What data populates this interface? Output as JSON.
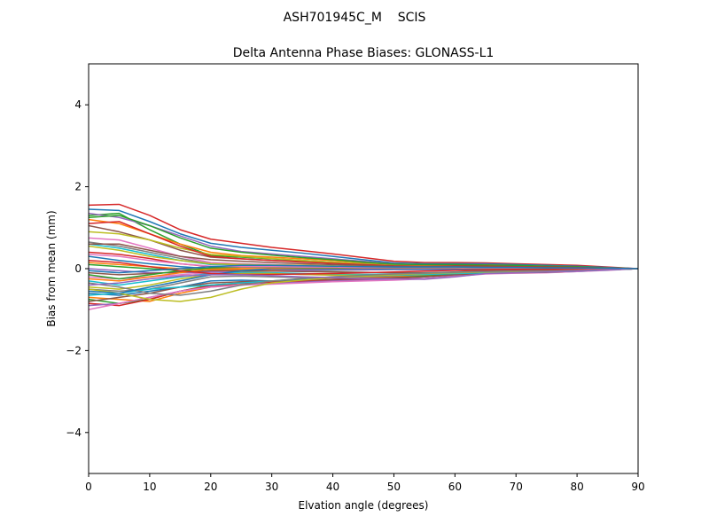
{
  "chart_data": {
    "type": "line",
    "suptitle": "ASH701945C_M    SCIS",
    "title": "Delta Antenna Phase Biases: GLONASS-L1",
    "xlabel": "Elvation angle (degrees)",
    "ylabel": "Bias from mean (mm)",
    "xlim": [
      0,
      90
    ],
    "ylim": [
      -5,
      5
    ],
    "xticks": [
      0,
      10,
      20,
      30,
      40,
      50,
      60,
      70,
      80,
      90
    ],
    "yticks": [
      -4,
      -2,
      0,
      2,
      4
    ],
    "xtick_labels": [
      "0",
      "10",
      "20",
      "30",
      "40",
      "50",
      "60",
      "70",
      "80",
      "90"
    ],
    "ytick_labels": [
      "−4",
      "−2",
      "0",
      "2",
      "4"
    ],
    "grid": false,
    "legend": "none",
    "x": [
      0,
      5,
      10,
      15,
      20,
      25,
      30,
      35,
      40,
      45,
      50,
      55,
      60,
      65,
      70,
      75,
      80,
      85,
      90
    ],
    "series": [
      {
        "color": "#d62728",
        "values": [
          1.55,
          1.57,
          1.3,
          0.95,
          0.72,
          0.62,
          0.52,
          0.44,
          0.36,
          0.27,
          0.18,
          0.15,
          0.15,
          0.14,
          0.12,
          0.1,
          0.08,
          0.04,
          0.0
        ]
      },
      {
        "color": "#1f77b4",
        "values": [
          1.45,
          1.42,
          1.15,
          0.85,
          0.62,
          0.52,
          0.45,
          0.38,
          0.3,
          0.22,
          0.14,
          0.12,
          0.12,
          0.12,
          0.1,
          0.08,
          0.06,
          0.03,
          0.0
        ]
      },
      {
        "color": "#2ca02c",
        "values": [
          1.3,
          1.35,
          0.95,
          0.6,
          0.32,
          0.28,
          0.24,
          0.2,
          0.16,
          0.12,
          0.08,
          0.08,
          0.08,
          0.08,
          0.06,
          0.05,
          0.04,
          0.02,
          0.0
        ]
      },
      {
        "color": "#9467bd",
        "values": [
          1.35,
          1.25,
          1.05,
          0.8,
          0.55,
          0.42,
          0.36,
          0.3,
          0.24,
          0.18,
          0.12,
          0.1,
          0.1,
          0.1,
          0.08,
          0.06,
          0.05,
          0.02,
          0.0
        ]
      },
      {
        "color": "#ff7f0e",
        "values": [
          1.2,
          1.1,
          0.85,
          0.6,
          0.4,
          0.32,
          0.28,
          0.24,
          0.2,
          0.15,
          0.1,
          0.09,
          0.09,
          0.09,
          0.07,
          0.06,
          0.04,
          0.02,
          0.0
        ]
      },
      {
        "color": "#8c564b",
        "values": [
          1.05,
          0.9,
          0.7,
          0.45,
          0.28,
          0.24,
          0.2,
          0.18,
          0.15,
          0.12,
          0.08,
          0.07,
          0.07,
          0.07,
          0.06,
          0.05,
          0.03,
          0.02,
          0.0
        ]
      },
      {
        "color": "#bcbd22",
        "values": [
          0.9,
          0.85,
          0.7,
          0.5,
          0.35,
          0.3,
          0.25,
          0.2,
          0.16,
          0.12,
          0.08,
          0.07,
          0.06,
          0.06,
          0.05,
          0.04,
          0.03,
          0.01,
          0.0
        ]
      },
      {
        "color": "#e377c2",
        "values": [
          0.75,
          0.7,
          0.5,
          0.3,
          0.15,
          0.12,
          0.1,
          0.08,
          0.06,
          0.05,
          0.04,
          0.04,
          0.04,
          0.04,
          0.03,
          0.03,
          0.02,
          0.01,
          0.0
        ]
      },
      {
        "color": "#17becf",
        "values": [
          0.6,
          0.5,
          0.35,
          0.2,
          0.1,
          0.1,
          0.08,
          0.06,
          0.05,
          0.04,
          0.03,
          0.03,
          0.03,
          0.03,
          0.02,
          0.02,
          0.01,
          0.01,
          0.0
        ]
      },
      {
        "color": "#7f7f7f",
        "values": [
          0.65,
          0.55,
          0.4,
          0.25,
          0.12,
          0.1,
          0.08,
          0.06,
          0.05,
          0.04,
          0.03,
          0.03,
          0.03,
          0.02,
          0.02,
          0.02,
          0.01,
          0.0,
          0.0
        ]
      },
      {
        "color": "#d62728",
        "values": [
          0.4,
          0.35,
          0.25,
          0.12,
          0.05,
          0.04,
          0.03,
          0.02,
          0.02,
          0.02,
          0.01,
          0.01,
          0.01,
          0.01,
          0.01,
          0.0,
          0.0,
          0.0,
          0.0
        ]
      },
      {
        "color": "#1f77b4",
        "values": [
          0.3,
          0.2,
          0.12,
          0.05,
          0.0,
          -0.02,
          -0.03,
          -0.03,
          -0.03,
          -0.02,
          -0.02,
          -0.02,
          -0.02,
          -0.01,
          -0.01,
          -0.01,
          -0.01,
          0.0,
          0.0
        ]
      },
      {
        "color": "#2ca02c",
        "values": [
          0.1,
          0.05,
          0.0,
          -0.05,
          -0.08,
          -0.07,
          -0.06,
          -0.05,
          -0.04,
          -0.03,
          -0.02,
          -0.02,
          -0.02,
          -0.02,
          -0.02,
          -0.01,
          -0.01,
          0.0,
          0.0
        ]
      },
      {
        "color": "#ff7f0e",
        "values": [
          0.15,
          0.1,
          0.05,
          0.0,
          -0.02,
          -0.02,
          -0.02,
          -0.02,
          -0.02,
          -0.02,
          -0.01,
          -0.01,
          -0.01,
          -0.01,
          -0.01,
          -0.01,
          0.0,
          0.0,
          0.0
        ]
      },
      {
        "color": "#9467bd",
        "values": [
          0.0,
          -0.05,
          -0.1,
          -0.1,
          -0.08,
          -0.06,
          -0.05,
          -0.04,
          -0.03,
          -0.03,
          -0.02,
          -0.02,
          -0.02,
          -0.02,
          -0.01,
          -0.01,
          -0.01,
          0.0,
          0.0
        ]
      },
      {
        "color": "#8c564b",
        "values": [
          -0.1,
          -0.15,
          -0.12,
          -0.08,
          -0.05,
          -0.05,
          -0.06,
          -0.07,
          -0.08,
          -0.09,
          -0.1,
          -0.1,
          -0.08,
          -0.05,
          -0.05,
          -0.05,
          -0.04,
          -0.02,
          0.0
        ]
      },
      {
        "color": "#e377c2",
        "values": [
          -0.2,
          -0.25,
          -0.2,
          -0.15,
          -0.1,
          -0.1,
          -0.12,
          -0.14,
          -0.16,
          -0.17,
          -0.18,
          -0.16,
          -0.12,
          -0.08,
          -0.07,
          -0.06,
          -0.05,
          -0.03,
          0.0
        ]
      },
      {
        "color": "#17becf",
        "values": [
          -0.3,
          -0.4,
          -0.3,
          -0.2,
          -0.12,
          -0.1,
          -0.1,
          -0.12,
          -0.14,
          -0.14,
          -0.13,
          -0.11,
          -0.09,
          -0.07,
          -0.06,
          -0.05,
          -0.04,
          -0.02,
          0.0
        ]
      },
      {
        "color": "#bcbd22",
        "values": [
          -0.45,
          -0.5,
          -0.4,
          -0.25,
          -0.15,
          -0.12,
          -0.12,
          -0.14,
          -0.16,
          -0.16,
          -0.15,
          -0.12,
          -0.1,
          -0.08,
          -0.07,
          -0.06,
          -0.05,
          -0.02,
          0.0
        ]
      },
      {
        "color": "#7f7f7f",
        "values": [
          -0.5,
          -0.55,
          -0.5,
          -0.35,
          -0.2,
          -0.18,
          -0.2,
          -0.22,
          -0.22,
          -0.2,
          -0.18,
          -0.15,
          -0.12,
          -0.1,
          -0.08,
          -0.07,
          -0.05,
          -0.03,
          0.0
        ]
      },
      {
        "color": "#1f77b4",
        "values": [
          -0.6,
          -0.65,
          -0.55,
          -0.45,
          -0.3,
          -0.28,
          -0.3,
          -0.3,
          -0.28,
          -0.25,
          -0.22,
          -0.18,
          -0.14,
          -0.1,
          -0.09,
          -0.08,
          -0.06,
          -0.03,
          0.0
        ]
      },
      {
        "color": "#ff7f0e",
        "values": [
          -0.7,
          -0.75,
          -0.8,
          -0.6,
          -0.45,
          -0.35,
          -0.3,
          -0.28,
          -0.26,
          -0.23,
          -0.2,
          -0.17,
          -0.13,
          -0.1,
          -0.09,
          -0.08,
          -0.06,
          -0.03,
          0.0
        ]
      },
      {
        "color": "#2ca02c",
        "values": [
          -0.75,
          -0.85,
          -0.75,
          -0.55,
          -0.4,
          -0.35,
          -0.32,
          -0.3,
          -0.28,
          -0.25,
          -0.22,
          -0.18,
          -0.14,
          -0.1,
          -0.09,
          -0.08,
          -0.06,
          -0.03,
          0.0
        ]
      },
      {
        "color": "#d62728",
        "values": [
          -0.85,
          -0.9,
          -0.75,
          -0.55,
          -0.42,
          -0.36,
          -0.33,
          -0.31,
          -0.29,
          -0.26,
          -0.24,
          -0.2,
          -0.15,
          -0.11,
          -0.1,
          -0.09,
          -0.06,
          -0.03,
          0.0
        ]
      },
      {
        "color": "#9467bd",
        "values": [
          -0.9,
          -0.85,
          -0.7,
          -0.55,
          -0.45,
          -0.4,
          -0.36,
          -0.33,
          -0.3,
          -0.28,
          -0.26,
          -0.24,
          -0.18,
          -0.12,
          -0.1,
          -0.09,
          -0.07,
          -0.03,
          0.0
        ]
      },
      {
        "color": "#e377c2",
        "values": [
          -1.0,
          -0.85,
          -0.7,
          -0.55,
          -0.45,
          -0.4,
          -0.38,
          -0.35,
          -0.32,
          -0.3,
          -0.28,
          -0.25,
          -0.19,
          -0.13,
          -0.11,
          -0.1,
          -0.07,
          -0.04,
          0.0
        ]
      },
      {
        "color": "#8c564b",
        "values": [
          -0.8,
          -0.7,
          -0.6,
          -0.45,
          -0.35,
          -0.32,
          -0.3,
          -0.28,
          -0.26,
          -0.24,
          -0.22,
          -0.2,
          -0.15,
          -0.11,
          -0.1,
          -0.09,
          -0.06,
          -0.03,
          0.0
        ]
      },
      {
        "color": "#17becf",
        "values": [
          -0.65,
          -0.6,
          -0.5,
          -0.45,
          -0.4,
          -0.35,
          -0.3,
          -0.25,
          -0.2,
          -0.18,
          -0.16,
          -0.14,
          -0.12,
          -0.1,
          -0.09,
          -0.08,
          -0.06,
          -0.03,
          0.0
        ]
      },
      {
        "color": "#bcbd22",
        "values": [
          -0.5,
          -0.6,
          -0.75,
          -0.8,
          -0.7,
          -0.5,
          -0.35,
          -0.28,
          -0.22,
          -0.18,
          -0.15,
          -0.12,
          -0.1,
          -0.08,
          -0.07,
          -0.06,
          -0.05,
          -0.02,
          0.0
        ]
      },
      {
        "color": "#7f7f7f",
        "values": [
          -0.35,
          -0.45,
          -0.6,
          -0.65,
          -0.55,
          -0.4,
          -0.3,
          -0.24,
          -0.2,
          -0.16,
          -0.13,
          -0.11,
          -0.09,
          -0.07,
          -0.06,
          -0.05,
          -0.04,
          -0.02,
          0.0
        ]
      },
      {
        "color": "#1f77b4",
        "values": [
          -0.55,
          -0.6,
          -0.45,
          -0.3,
          -0.15,
          -0.05,
          0.0,
          0.0,
          0.0,
          0.0,
          0.0,
          0.0,
          0.0,
          0.0,
          0.0,
          0.0,
          0.0,
          0.0,
          0.0
        ]
      },
      {
        "color": "#ff7f0e",
        "values": [
          -0.25,
          -0.3,
          -0.2,
          -0.1,
          0.0,
          0.02,
          0.02,
          0.02,
          0.02,
          0.02,
          0.02,
          0.02,
          0.02,
          0.01,
          0.01,
          0.01,
          0.01,
          0.0,
          0.0
        ]
      },
      {
        "color": "#2ca02c",
        "values": [
          -0.15,
          -0.25,
          -0.15,
          -0.05,
          0.02,
          0.04,
          0.04,
          0.03,
          0.03,
          0.03,
          0.03,
          0.03,
          0.03,
          0.02,
          0.02,
          0.01,
          0.01,
          0.0,
          0.0
        ]
      },
      {
        "color": "#d62728",
        "values": [
          0.2,
          0.15,
          0.05,
          -0.05,
          -0.12,
          -0.14,
          -0.14,
          -0.13,
          -0.12,
          -0.1,
          -0.08,
          -0.06,
          -0.04,
          -0.03,
          -0.02,
          -0.02,
          -0.01,
          0.0,
          0.0
        ]
      },
      {
        "color": "#9467bd",
        "values": [
          -0.4,
          -0.35,
          -0.25,
          -0.18,
          -0.15,
          -0.15,
          -0.17,
          -0.2,
          -0.22,
          -0.24,
          -0.25,
          -0.26,
          -0.2,
          -0.12,
          -0.1,
          -0.08,
          -0.06,
          -0.03,
          0.0
        ]
      },
      {
        "color": "#e377c2",
        "values": [
          0.35,
          0.3,
          0.2,
          0.12,
          0.06,
          0.05,
          0.05,
          0.04,
          0.04,
          0.03,
          0.03,
          0.03,
          0.03,
          0.02,
          0.02,
          0.02,
          0.01,
          0.0,
          0.0
        ]
      },
      {
        "color": "#bcbd22",
        "values": [
          0.55,
          0.45,
          0.3,
          0.2,
          0.12,
          0.1,
          0.09,
          0.08,
          0.07,
          0.06,
          0.05,
          0.05,
          0.05,
          0.04,
          0.04,
          0.03,
          0.02,
          0.01,
          0.0
        ]
      },
      {
        "color": "#2ca02c",
        "values": [
          1.25,
          1.3,
          1.05,
          0.75,
          0.5,
          0.4,
          0.33,
          0.27,
          0.22,
          0.16,
          0.11,
          0.1,
          0.1,
          0.09,
          0.08,
          0.06,
          0.05,
          0.02,
          0.0
        ]
      },
      {
        "color": "#d62728",
        "values": [
          1.1,
          1.15,
          0.85,
          0.55,
          0.3,
          0.24,
          0.2,
          0.16,
          0.13,
          0.1,
          0.07,
          0.06,
          0.06,
          0.06,
          0.05,
          0.04,
          0.03,
          0.01,
          0.0
        ]
      },
      {
        "color": "#8c564b",
        "values": [
          0.6,
          0.6,
          0.45,
          0.3,
          0.22,
          0.18,
          0.15,
          0.12,
          0.1,
          0.08,
          0.06,
          0.05,
          0.05,
          0.05,
          0.04,
          0.03,
          0.02,
          0.01,
          0.0
        ]
      },
      {
        "color": "#1f77b4",
        "values": [
          -0.05,
          -0.1,
          -0.05,
          0.0,
          0.05,
          0.08,
          0.08,
          0.07,
          0.06,
          0.05,
          0.04,
          0.04,
          0.04,
          0.03,
          0.03,
          0.02,
          0.02,
          0.01,
          0.0
        ]
      }
    ]
  }
}
